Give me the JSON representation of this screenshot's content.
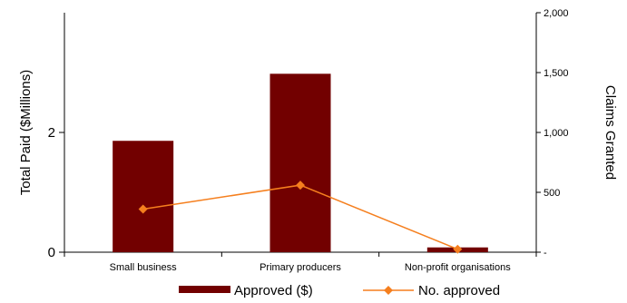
{
  "chart_data": {
    "type": "bar+line",
    "categories": [
      "Small business",
      "Primary producers",
      "Non-profit organisations"
    ],
    "series": [
      {
        "name": "Approved ($)",
        "type": "bar",
        "axis": "left",
        "color": "#720000",
        "values": [
          1.86,
          2.98,
          0.08
        ]
      },
      {
        "name": "No. approved",
        "type": "line",
        "axis": "right",
        "color": "#F57F1E",
        "marker": "diamond",
        "values": [
          360,
          560,
          25
        ]
      }
    ],
    "y_left": {
      "label": "Total Paid ($Millions)",
      "range": [
        0,
        4
      ],
      "ticks": [
        0,
        2
      ],
      "tick_labels": [
        "0",
        "2"
      ]
    },
    "y_right": {
      "label": "Claims Granted",
      "range": [
        0,
        2000
      ],
      "ticks": [
        0,
        500,
        1000,
        1500,
        2000
      ],
      "tick_labels": [
        "-",
        "500",
        "1,000",
        "1,500",
        "2,000"
      ]
    },
    "grid": false,
    "legend": {
      "position": "bottom",
      "entries": [
        "Approved ($)",
        "No. approved"
      ]
    }
  }
}
